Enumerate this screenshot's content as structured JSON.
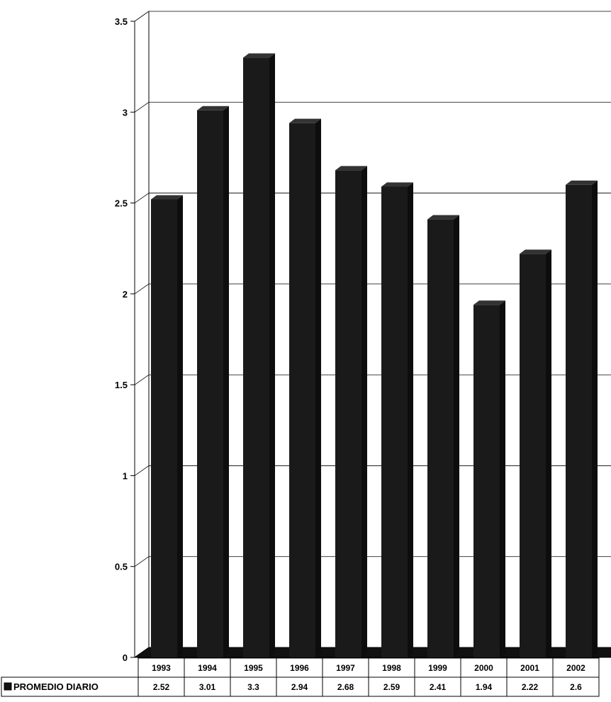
{
  "chart_data": {
    "type": "bar",
    "categories": [
      "1993",
      "1994",
      "1995",
      "1996",
      "1997",
      "1998",
      "1999",
      "2000",
      "2001",
      "2002"
    ],
    "series": [
      {
        "name": "PROMEDIO DIARIO",
        "values": [
          2.52,
          3.01,
          3.3,
          2.94,
          2.68,
          2.59,
          2.41,
          1.94,
          2.22,
          2.6
        ]
      }
    ],
    "data_table_values": [
      "2.52",
      "3.01",
      "3.3",
      "2.94",
      "2.68",
      "2.59",
      "2.41",
      "1.94",
      "2.22",
      "2.6"
    ],
    "y_ticks": [
      "0",
      "0.5",
      "1",
      "1.5",
      "2",
      "2.5",
      "3",
      "3.5"
    ],
    "ylim": [
      0,
      3.5
    ],
    "grid": true,
    "legend": "data table, bottom-left",
    "bar_color": "#1a1a1a",
    "bar_top_color": "#333333",
    "bar_side_color": "#0d0d0d"
  }
}
